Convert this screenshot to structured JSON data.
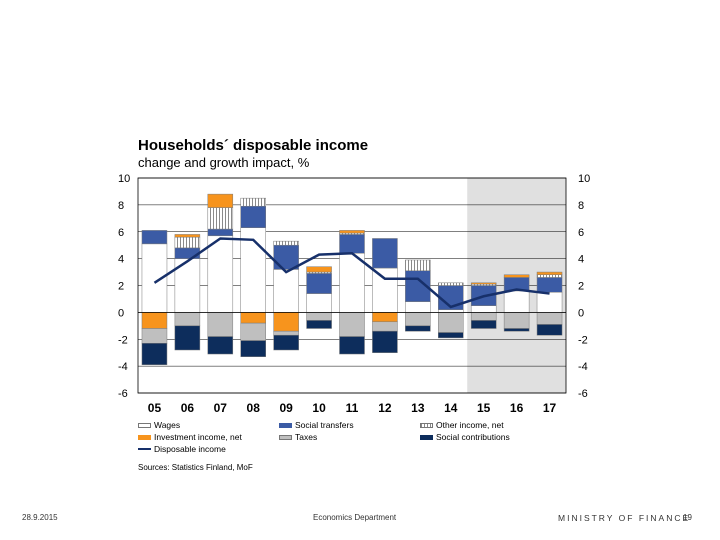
{
  "chart_data": {
    "type": "bar",
    "title": "Households´ disposable income",
    "subtitle": "change and growth impact, %",
    "categories": [
      "05",
      "06",
      "07",
      "08",
      "09",
      "10",
      "11",
      "12",
      "13",
      "14",
      "15",
      "16",
      "17"
    ],
    "forecast_categories": [
      "15",
      "16",
      "17"
    ],
    "ylim": [
      -6,
      10
    ],
    "yticks": [
      10,
      8,
      6,
      4,
      2,
      0,
      -2,
      -4,
      -6
    ],
    "series": [
      {
        "name": "Wages",
        "color": "#ffffff",
        "values": [
          5.1,
          4.0,
          5.7,
          6.3,
          3.2,
          1.4,
          4.4,
          3.3,
          0.8,
          0.2,
          0.5,
          1.6,
          1.5
        ]
      },
      {
        "name": "Social transfers",
        "color": "#3b5ba5",
        "values": [
          1.0,
          0.8,
          0.5,
          1.6,
          1.8,
          1.5,
          1.4,
          2.2,
          2.3,
          1.8,
          1.5,
          1.0,
          1.1
        ]
      },
      {
        "name": "Other income, net",
        "color": "#c8c8c8",
        "values": [
          0.0,
          0.8,
          1.6,
          0.6,
          0.3,
          0.1,
          0.1,
          0.0,
          0.8,
          0.2,
          0.1,
          0.0,
          0.2
        ]
      },
      {
        "name": "Investment income, net",
        "color": "#f7941d",
        "values": [
          -1.2,
          0.2,
          1.0,
          -0.8,
          -1.4,
          0.4,
          0.2,
          -0.7,
          0.0,
          0.0,
          0.1,
          0.2,
          0.2
        ]
      },
      {
        "name": "Taxes",
        "color": "#bfbfbf",
        "values": [
          -1.1,
          -1.0,
          -1.8,
          -1.3,
          -0.3,
          -0.6,
          -1.8,
          -0.7,
          -1.0,
          -1.5,
          -0.6,
          -1.2,
          -0.9
        ]
      },
      {
        "name": "Social contributions",
        "color": "#0d2d5c",
        "values": [
          -1.6,
          -1.8,
          -1.3,
          -1.2,
          -1.1,
          -0.6,
          -1.3,
          -1.6,
          -0.4,
          -0.4,
          -0.6,
          -0.2,
          -0.8
        ]
      }
    ],
    "line_series": {
      "name": "Disposable income",
      "color": "#17306a",
      "values": [
        2.2,
        3.8,
        5.5,
        5.4,
        3.0,
        4.3,
        4.4,
        2.5,
        2.5,
        0.4,
        1.2,
        1.7,
        1.4
      ]
    },
    "legend_position": "bottom"
  },
  "sources": "Sources: Statistics Finland, MoF",
  "footer": {
    "date": "28.9.2015",
    "department": "Economics Department",
    "ministry": "MINISTRY OF FINANCE",
    "page": "19"
  }
}
